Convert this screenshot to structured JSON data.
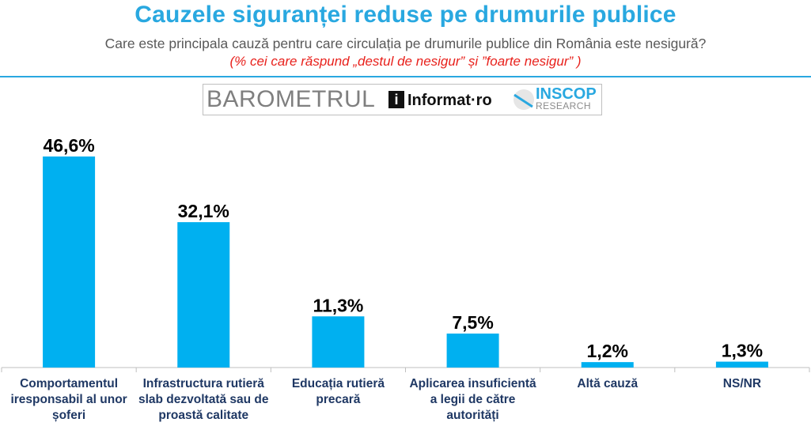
{
  "header": {
    "title": "Cauzele siguranței reduse pe drumurile publice",
    "subtitle": "Care este principala cauză pentru care circulația pe drumurile publice din România este nesigură?",
    "note": "(% cei care răspund „destul de nesigur” și ”foarte nesigur” )"
  },
  "logos": {
    "barometrul": "BAROMETRUL",
    "informat_icon": "i",
    "informat": "Informat·ro",
    "inscop": "INSCOP",
    "research": "RESEARCH"
  },
  "colors": {
    "bar": "#00b0f0",
    "title": "#29a8e0",
    "note": "#e8211c",
    "category": "#1f3864"
  },
  "chart_data": {
    "type": "bar",
    "title": "Cauzele siguranței reduse pe drumurile publice",
    "xlabel": "",
    "ylabel": "",
    "ylim": [
      0,
      50
    ],
    "grid": false,
    "categories": [
      "Comportamentul iresponsabil al unor șoferi",
      "Infrastructura rutieră slab dezvoltată sau de proastă calitate",
      "Educația rutieră precară",
      "Aplicarea insuficientă a legii de către autorități",
      "Altă cauză",
      "NS/NR"
    ],
    "values": [
      46.6,
      32.1,
      11.3,
      7.5,
      1.2,
      1.3
    ],
    "value_labels": [
      "46,6%",
      "32,1%",
      "11,3%",
      "7,5%",
      "1,2%",
      "1,3%"
    ]
  }
}
